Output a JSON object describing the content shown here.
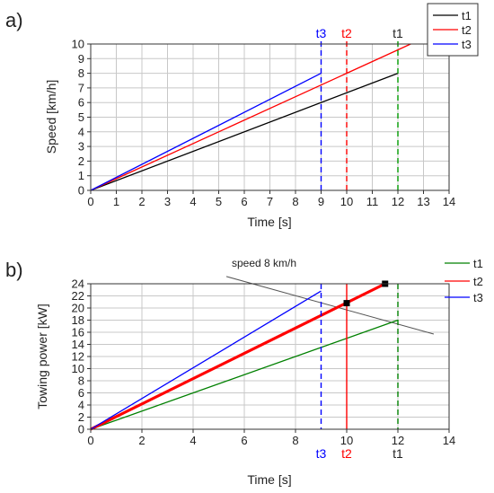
{
  "chart_data": [
    {
      "type": "line",
      "panel_label": "a)",
      "xlabel": "Time [s]",
      "ylabel": "Speed [km/h]",
      "xlim": [
        0,
        14
      ],
      "ylim": [
        0,
        10
      ],
      "xticks": [
        "0",
        "1",
        "2",
        "3",
        "4",
        "5",
        "6",
        "7",
        "8",
        "9",
        "10",
        "11",
        "12",
        "13",
        "14"
      ],
      "yticks": [
        "0",
        "1",
        "2",
        "3",
        "4",
        "5",
        "6",
        "7",
        "8",
        "9",
        "10"
      ],
      "grid": true,
      "legend_position": "top-right",
      "series": [
        {
          "name": "t1",
          "color": "#000000",
          "points": [
            [
              0,
              0
            ],
            [
              12,
              8
            ]
          ]
        },
        {
          "name": "t2",
          "color": "#ff0000",
          "points": [
            [
              0,
              0
            ],
            [
              12.5,
              10
            ]
          ]
        },
        {
          "name": "t3",
          "color": "#0000ff",
          "points": [
            [
              0,
              0
            ],
            [
              9,
              8
            ]
          ]
        }
      ],
      "markers": [
        {
          "label": "t3",
          "x": 9,
          "color": "#0000ff"
        },
        {
          "label": "t2",
          "x": 10,
          "color": "#ff0000"
        },
        {
          "label": "t1",
          "x": 12,
          "color": "#009900"
        }
      ]
    },
    {
      "type": "line",
      "panel_label": "b)",
      "xlabel": "Time [s]",
      "ylabel": "Towing power [kW]",
      "xlim": [
        0,
        14
      ],
      "ylim": [
        0,
        24
      ],
      "xticks": [
        "0",
        "2",
        "4",
        "6",
        "8",
        "10",
        "12",
        "14"
      ],
      "yticks": [
        "0",
        "2",
        "4",
        "6",
        "8",
        "10",
        "12",
        "14",
        "16",
        "18",
        "20",
        "22",
        "24"
      ],
      "grid": true,
      "legend_position": "top-right",
      "series": [
        {
          "name": "t1",
          "color": "#008000",
          "points": [
            [
              0,
              0
            ],
            [
              12,
              18
            ]
          ]
        },
        {
          "name": "t2",
          "color": "#ff0000",
          "points": [
            [
              0,
              0
            ],
            [
              11.5,
              24
            ]
          ]
        },
        {
          "name": "t3",
          "color": "#0000ff",
          "points": [
            [
              0,
              0
            ],
            [
              9,
              22.8
            ]
          ]
        }
      ],
      "markers": [
        {
          "label": "t3",
          "x": 9,
          "color": "#0000ff",
          "style": "dashed"
        },
        {
          "label": "t2",
          "x": 10,
          "color": "#ff0000",
          "style": "solid"
        },
        {
          "label": "t1",
          "x": 12,
          "color": "#008000",
          "style": "dashed"
        }
      ],
      "annotation": {
        "text": "speed 8 km/h",
        "points": [
          [
            5.3,
            25.2
          ],
          [
            13.4,
            15.7
          ]
        ],
        "square_points": [
          [
            10,
            20.8
          ],
          [
            11.5,
            24
          ]
        ]
      }
    }
  ]
}
